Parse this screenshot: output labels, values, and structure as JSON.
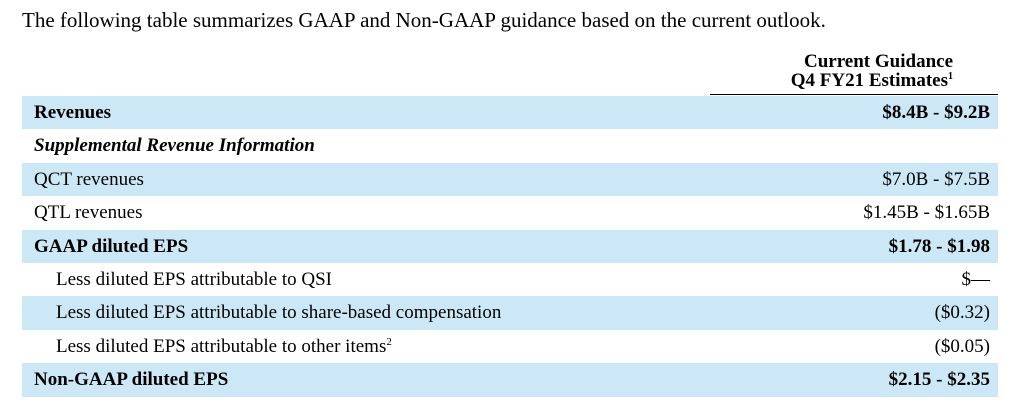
{
  "intro": "The following table summarizes GAAP and Non-GAAP guidance based on the current outlook.",
  "column_header": {
    "line1": "Current Guidance",
    "line2": "Q4 FY21 Estimates",
    "footnote": "1"
  },
  "rows": [
    {
      "label": "Revenues",
      "value": "$8.4B - $9.2B"
    },
    {
      "label": "Supplemental Revenue Information",
      "value": ""
    },
    {
      "label": "QCT revenues",
      "value": "$7.0B - $7.5B"
    },
    {
      "label": "QTL revenues",
      "value": "$1.45B - $1.65B"
    },
    {
      "label": "GAAP diluted EPS",
      "value": "$1.78 - $1.98"
    },
    {
      "label": "Less diluted EPS attributable to QSI",
      "value": "$—"
    },
    {
      "label": "Less diluted EPS attributable to share-based compensation",
      "value": "($0.32)"
    },
    {
      "label": "Less diluted EPS attributable to other items",
      "footnote": "2",
      "value": "($0.05)"
    },
    {
      "label": "Non-GAAP diluted EPS",
      "value": "$2.15 - $2.35"
    }
  ],
  "colors": {
    "row_shade": "#cce8f6"
  }
}
